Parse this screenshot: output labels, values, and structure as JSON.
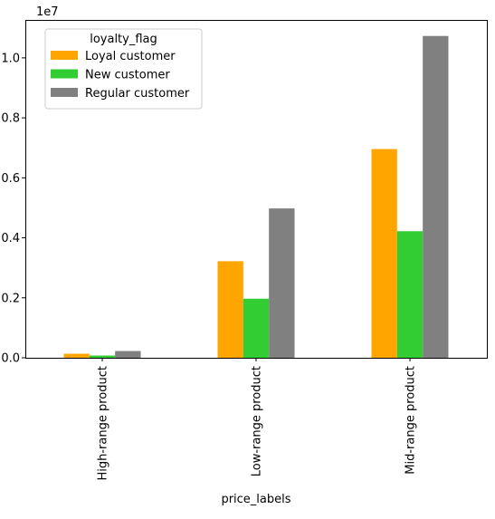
{
  "chart_data": {
    "type": "bar",
    "categories": [
      "High-range product",
      "Low-range product",
      "Mid-range product"
    ],
    "series": [
      {
        "name": "Loyal customer",
        "color": "#ffa500",
        "values": [
          135000,
          3220000,
          6960000
        ]
      },
      {
        "name": "New customer",
        "color": "#32cd32",
        "values": [
          75000,
          1970000,
          4220000
        ]
      },
      {
        "name": "Regular customer",
        "color": "#808080",
        "values": [
          225000,
          4980000,
          10730000
        ]
      }
    ],
    "xlabel": "price_labels",
    "ylabel": "",
    "ylim": [
      0,
      11265000
    ],
    "yticks": [
      0,
      2000000,
      4000000,
      6000000,
      8000000,
      10000000
    ],
    "ytick_labels": [
      "0.0",
      "0.2",
      "0.4",
      "0.6",
      "0.8",
      "1.0"
    ],
    "offset_text": "1e7",
    "legend": {
      "title": "loyalty_flag",
      "position": "top-left"
    },
    "grid": false
  }
}
